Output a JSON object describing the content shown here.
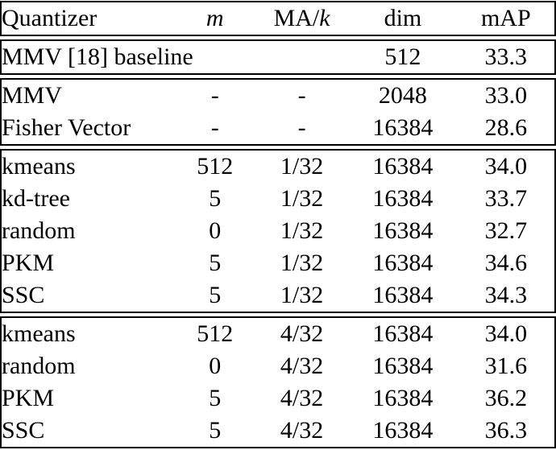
{
  "meta": {
    "background_color": "#ffffff",
    "text_color": "#000000",
    "border_color": "#000000",
    "rule_style": "double rules between row groups, single outer border"
  },
  "table": {
    "columns": [
      "quantizer",
      "m",
      "ma-per-k",
      "dim",
      "map"
    ],
    "header": {
      "cells": [
        {
          "parts": [
            {
              "t": "Quantizer",
              "italic": false
            }
          ]
        },
        {
          "parts": [
            {
              "t": "m",
              "italic": true
            }
          ]
        },
        {
          "parts": [
            {
              "t": "MA/",
              "italic": false
            },
            {
              "t": "k",
              "italic": true
            }
          ]
        },
        {
          "parts": [
            {
              "t": "dim",
              "italic": false
            }
          ]
        },
        {
          "parts": [
            {
              "t": "mAP",
              "italic": false
            }
          ]
        }
      ]
    },
    "sections": [
      {
        "name": "baseline",
        "rows": [
          {
            "cells": [
              "MMV [18] baseline",
              "512",
              "33.3"
            ],
            "colspans": [
              3,
              1,
              1
            ],
            "bold": []
          }
        ]
      },
      {
        "name": "global-descriptors",
        "rows": [
          {
            "cells": [
              "MMV",
              "-",
              "-",
              "2048",
              "33.0"
            ],
            "bold": []
          },
          {
            "cells": [
              "Fisher Vector",
              "-",
              "-",
              "16384",
              "28.6"
            ],
            "bold": []
          }
        ]
      },
      {
        "name": "ma-1-32",
        "rows": [
          {
            "cells": [
              "kmeans",
              "512",
              "1/32",
              "16384",
              "34.0"
            ],
            "bold": []
          },
          {
            "cells": [
              "kd-tree",
              "5",
              "1/32",
              "16384",
              "33.7"
            ],
            "bold": []
          },
          {
            "cells": [
              "random",
              "0",
              "1/32",
              "16384",
              "32.7"
            ],
            "bold": []
          },
          {
            "cells": [
              "PKM",
              "5",
              "1/32",
              "16384",
              "34.6"
            ],
            "bold": []
          },
          {
            "cells": [
              "SSC",
              "5",
              "1/32",
              "16384",
              "34.3"
            ],
            "bold": []
          }
        ]
      },
      {
        "name": "ma-4-32",
        "rows": [
          {
            "cells": [
              "kmeans",
              "512",
              "4/32",
              "16384",
              "34.0"
            ],
            "bold": []
          },
          {
            "cells": [
              "random",
              "0",
              "4/32",
              "16384",
              "31.6"
            ],
            "bold": []
          },
          {
            "cells": [
              "PKM",
              "5",
              "4/32",
              "16384",
              "36.2"
            ],
            "bold": [
              4
            ]
          },
          {
            "cells": [
              "SSC",
              "5",
              "4/32",
              "16384",
              "36.3"
            ],
            "bold": [
              4
            ]
          }
        ]
      }
    ]
  }
}
